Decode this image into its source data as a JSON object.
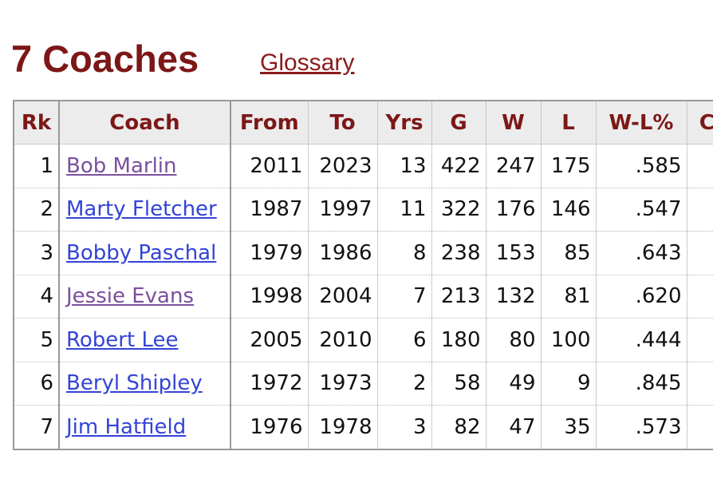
{
  "header": {
    "title": "7 Coaches",
    "link": "Glossary"
  },
  "table": {
    "columns": [
      "Rk",
      "Coach",
      "From",
      "To",
      "Yrs",
      "G",
      "W",
      "L",
      "W-L%",
      "Cl"
    ],
    "rows": [
      [
        "1",
        "Bob Marlin",
        "2011",
        "2023",
        "13",
        "422",
        "247",
        "175",
        ".585"
      ],
      [
        "2",
        "Marty Fletcher",
        "1987",
        "1997",
        "11",
        "322",
        "176",
        "146",
        ".547"
      ],
      [
        "3",
        "Bobby Paschal",
        "1979",
        "1986",
        "8",
        "238",
        "153",
        "85",
        ".643"
      ],
      [
        "4",
        "Jessie Evans",
        "1998",
        "2004",
        "7",
        "213",
        "132",
        "81",
        ".620"
      ],
      [
        "5",
        "Robert Lee",
        "2005",
        "2010",
        "6",
        "180",
        "80",
        "100",
        ".444"
      ],
      [
        "6",
        "Beryl Shipley",
        "1972",
        "1973",
        "2",
        "58",
        "49",
        "9",
        ".845"
      ],
      [
        "7",
        "Jim Hatfield",
        "1976",
        "1978",
        "3",
        "82",
        "47",
        "35",
        ".573"
      ]
    ],
    "link_colors": [
      "#7b4f9e",
      "#3344d6",
      "#3344d6",
      "#7b4f9e",
      "#3344d6",
      "#3344d6",
      "#3344d6"
    ]
  }
}
